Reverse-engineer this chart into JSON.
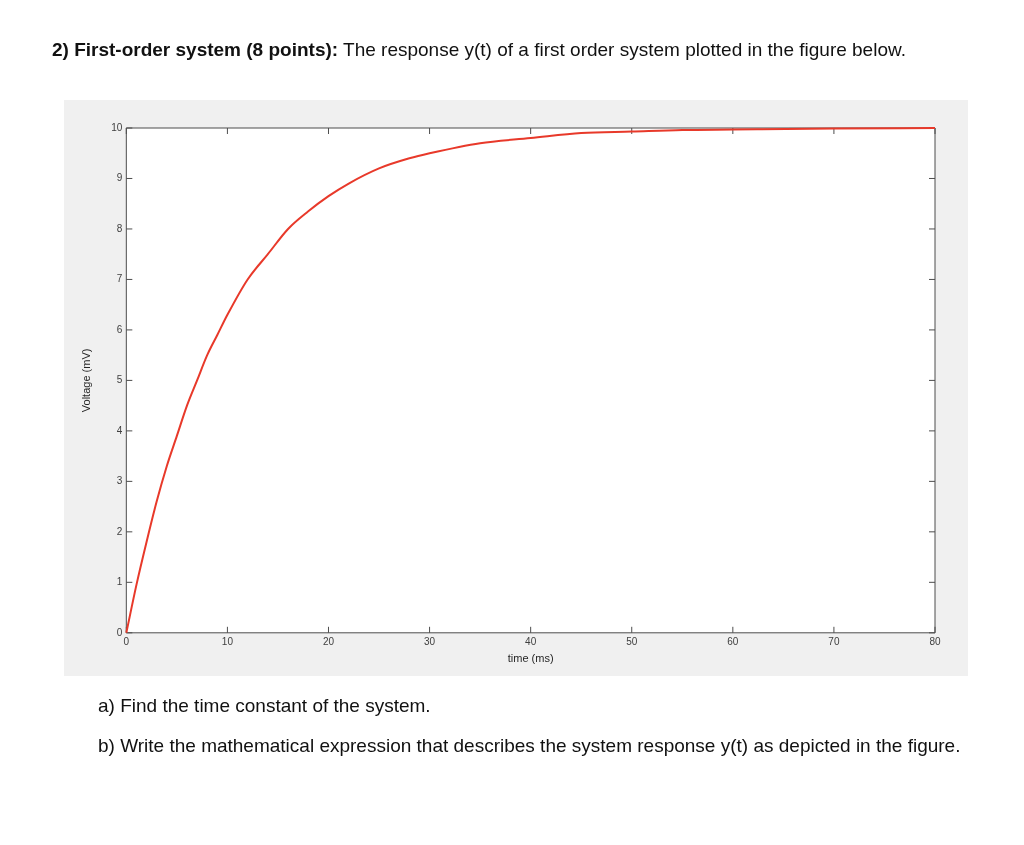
{
  "chart_data": {
    "type": "line",
    "title": "2) First-order system (8 points):",
    "subtitle": "The response y(t) of a first order system plotted in the figure below.",
    "xlabel": "time (ms)",
    "ylabel": "Voltage (mV)",
    "annotations": [
      "a) Find the time constant of the system.",
      "b) Write the mathematical expression that describes the system response y(t) as depicted in the figure."
    ],
    "x": [
      0,
      1,
      2,
      3,
      4,
      5,
      6,
      7,
      8,
      9,
      10,
      12,
      14,
      16,
      18,
      20,
      22,
      25,
      28,
      30,
      35,
      40,
      45,
      50,
      55,
      60,
      70,
      80
    ],
    "series": [
      {
        "color": "#e8392a",
        "values": [
          0,
          0.95,
          1.8,
          2.6,
          3.3,
          3.9,
          4.5,
          5.0,
          5.5,
          5.9,
          6.3,
          7.0,
          7.5,
          8.0,
          8.35,
          8.65,
          8.9,
          9.2,
          9.4,
          9.5,
          9.7,
          9.8,
          9.9,
          9.93,
          9.96,
          9.97,
          9.99,
          10
        ]
      }
    ],
    "xlim": [
      0,
      80
    ],
    "xticks": [
      0,
      10,
      20,
      30,
      40,
      50,
      60,
      70,
      80
    ],
    "ylim": [
      0,
      10
    ],
    "yticks": [
      0,
      1,
      2,
      3,
      4,
      5,
      6,
      7,
      8,
      9,
      10
    ],
    "grid": false,
    "legend": false,
    "marker": "none",
    "line_style": "solid"
  }
}
